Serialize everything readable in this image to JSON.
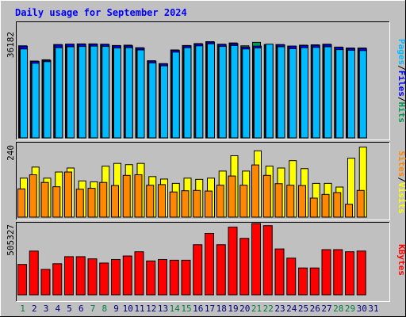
{
  "chart_data": {
    "type": "bar",
    "title": "Daily usage for September 2024",
    "categories": [
      "1",
      "2",
      "3",
      "4",
      "5",
      "6",
      "7",
      "8",
      "9",
      "10",
      "11",
      "12",
      "13",
      "14",
      "15",
      "16",
      "17",
      "18",
      "19",
      "20",
      "21",
      "22",
      "23",
      "24",
      "25",
      "26",
      "27",
      "28",
      "29",
      "30",
      "31"
    ],
    "weekend_days": [
      "1",
      "7",
      "8",
      "14",
      "15",
      "21",
      "22",
      "28",
      "29"
    ],
    "panels": [
      {
        "id": "hits",
        "scale_label": "36182",
        "ymax": 36182,
        "legend": [
          "Pages",
          "/",
          "Files",
          "/",
          "Hits"
        ],
        "series": [
          {
            "name": "Hits",
            "color": "#009955",
            "values": [
              29000,
              24200,
              24600,
              29400,
              29500,
              29600,
              29600,
              29500,
              29100,
              29200,
              28400,
              24300,
              23400,
              27700,
              29100,
              29700,
              30300,
              29500,
              29900,
              29000,
              30100,
              29400,
              29400,
              28900,
              29200,
              29300,
              29500,
              28600,
              28300,
              28300,
              0
            ]
          },
          {
            "name": "Files",
            "color": "#0000ff",
            "values": [
              28900,
              24100,
              24400,
              29300,
              29500,
              29500,
              29500,
              29400,
              29000,
              29000,
              28300,
              24200,
              23300,
              27600,
              29000,
              29600,
              30200,
              29400,
              29700,
              28600,
              28900,
              29300,
              29300,
              28900,
              29100,
              29200,
              29400,
              28500,
              28200,
              28200,
              0
            ]
          },
          {
            "name": "Pages",
            "color": "#00bbff",
            "values": [
              28500,
              24000,
              24500,
              28900,
              29200,
              29300,
              29400,
              29300,
              28800,
              28900,
              28200,
              24100,
              23200,
              27500,
              28900,
              29500,
              30100,
              29300,
              29600,
              28500,
              28800,
              30000,
              29200,
              28600,
              28900,
              29000,
              29200,
              28300,
              28100,
              28000,
              0
            ]
          }
        ]
      },
      {
        "id": "visits",
        "scale_label": "240",
        "ymax": 240,
        "legend": [
          "Sites",
          "/",
          "Visits"
        ],
        "series": [
          {
            "name": "Visits",
            "color": "#ffff00",
            "values": [
              127,
              163,
              127,
              147,
              160,
              118,
              115,
              166,
              175,
              171,
              175,
              132,
              124,
              110,
              127,
              123,
              127,
              150,
              200,
              150,
              216,
              166,
              160,
              184,
              158,
              110,
              110,
              98,
              192,
              228,
              0
            ]
          },
          {
            "name": "Sites",
            "color": "#ff8800",
            "values": [
              92,
              138,
              113,
              99,
              147,
              91,
              94,
              113,
              103,
              136,
              138,
              104,
              106,
              82,
              86,
              87,
              85,
              104,
              134,
              104,
              170,
              136,
              109,
              104,
              103,
              62,
              74,
              80,
              42,
              87,
              0
            ]
          }
        ]
      },
      {
        "id": "kbytes",
        "scale_label": "505327",
        "ymax": 505327,
        "legend": [
          "KBytes"
        ],
        "series": [
          {
            "name": "KBytes",
            "color": "#ff0000",
            "values": [
              215000,
              310000,
              180000,
              220000,
              270000,
              270000,
              255000,
              225000,
              250000,
              275000,
              305000,
              240000,
              250000,
              245000,
              245000,
              355000,
              435000,
              355000,
              480000,
              400000,
              505000,
              490000,
              325000,
              260000,
              190000,
              190000,
              320000,
              320000,
              305000,
              310000,
              0
            ]
          }
        ]
      }
    ],
    "colors": {
      "background": "#c0c0c0",
      "border_dark": "#000000",
      "border_light": "#ffffff",
      "title_color": "#0000ff",
      "weekday_label": "#000080",
      "weekend_label": "#008040"
    }
  }
}
